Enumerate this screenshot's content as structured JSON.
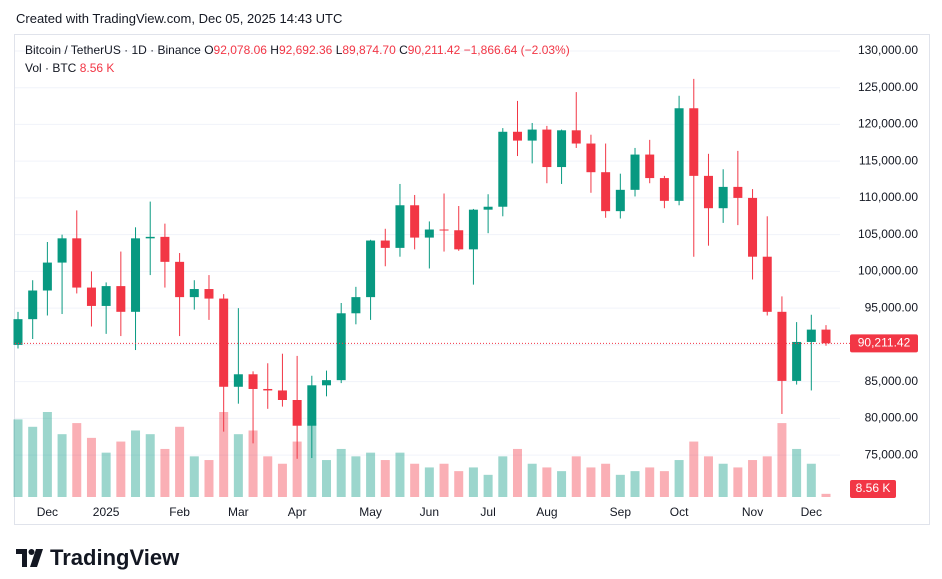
{
  "header": {
    "credit": "Created with TradingView.com, Dec 05, 2025 14:43 UTC"
  },
  "legend": {
    "symbol": "Bitcoin / TetherUS · 1D · Binance",
    "items": [
      {
        "key": "O",
        "value": "92,078.06"
      },
      {
        "key": "H",
        "value": "92,692.36"
      },
      {
        "key": "L",
        "value": "89,874.70"
      },
      {
        "key": "C",
        "value": "90,211.42"
      }
    ],
    "change": "−1,866.64 (−2.03%)",
    "volume_label": "Vol · BTC",
    "volume_value": "8.56 K"
  },
  "chart_data": {
    "type": "candlestick",
    "categories": [
      null,
      null,
      "Dec",
      null,
      null,
      null,
      "2025",
      null,
      null,
      null,
      null,
      "Feb",
      null,
      null,
      null,
      "Mar",
      null,
      null,
      null,
      "Apr",
      null,
      null,
      null,
      null,
      "May",
      null,
      null,
      null,
      "Jun",
      null,
      null,
      null,
      "Jul",
      null,
      null,
      null,
      "Aug",
      null,
      null,
      null,
      null,
      "Sep",
      null,
      null,
      null,
      "Oct",
      null,
      null,
      null,
      null,
      "Nov",
      null,
      null,
      null,
      "Dec",
      null
    ],
    "open": [
      90000,
      93500,
      97400,
      101200,
      104500,
      97800,
      95300,
      98000,
      94500,
      104500,
      104700,
      101300,
      96500,
      97600,
      96300,
      84300,
      86000,
      84000,
      83800,
      82500,
      79000,
      84500,
      85200,
      94300,
      96500,
      104200,
      103200,
      109000,
      104600,
      105700,
      105600,
      103000,
      108400,
      108800,
      119000,
      117800,
      119300,
      114200,
      119200,
      117400,
      113500,
      108200,
      111100,
      115900,
      112700,
      109600,
      122200,
      113000,
      108600,
      111500,
      110000,
      102000,
      94500,
      85100,
      90400,
      92078.06
    ],
    "high": [
      94500,
      98800,
      104000,
      105000,
      108300,
      100000,
      98500,
      102700,
      106000,
      109500,
      106500,
      102500,
      98800,
      99500,
      96900,
      95000,
      86400,
      87500,
      88800,
      88500,
      85800,
      86500,
      95700,
      97900,
      104300,
      105800,
      111900,
      110400,
      106800,
      110600,
      108900,
      108500,
      110500,
      119500,
      123200,
      120200,
      119800,
      119300,
      124400,
      118600,
      117400,
      113300,
      116800,
      117900,
      113000,
      123900,
      126200,
      116000,
      113900,
      116400,
      111200,
      107500,
      96600,
      93100,
      94100,
      92692.36
    ],
    "low": [
      89500,
      90800,
      94000,
      94200,
      97000,
      92500,
      91500,
      91200,
      89300,
      99500,
      97800,
      91200,
      94800,
      93400,
      78200,
      82000,
      76600,
      81300,
      81600,
      74500,
      74600,
      83000,
      84800,
      92800,
      93400,
      100700,
      102000,
      103000,
      100400,
      102700,
      102800,
      98200,
      105200,
      107500,
      115700,
      114700,
      112000,
      111900,
      116800,
      110700,
      107300,
      107200,
      110200,
      112000,
      108600,
      109000,
      102000,
      103500,
      106600,
      106300,
      98900,
      94000,
      80600,
      84600,
      83800,
      89874.7
    ],
    "close": [
      93500,
      97400,
      101200,
      104500,
      97800,
      95300,
      98000,
      94500,
      104500,
      104700,
      101300,
      96500,
      97600,
      96300,
      84300,
      86000,
      84000,
      83800,
      82500,
      79000,
      84500,
      85200,
      94300,
      96500,
      104200,
      103200,
      109000,
      104600,
      105700,
      105600,
      103000,
      108400,
      108800,
      119000,
      117800,
      119300,
      114200,
      119200,
      117400,
      113500,
      108200,
      111100,
      115900,
      112700,
      109600,
      122200,
      113000,
      108600,
      111500,
      110000,
      102000,
      94500,
      85100,
      90400,
      92078.06,
      90211.42
    ],
    "volume": [
      210000,
      190000,
      230000,
      170000,
      200000,
      160000,
      120000,
      150000,
      180000,
      170000,
      130000,
      190000,
      110000,
      100000,
      230000,
      170000,
      180000,
      110000,
      90000,
      150000,
      200000,
      100000,
      130000,
      110000,
      120000,
      100000,
      120000,
      90000,
      80000,
      90000,
      70000,
      80000,
      60000,
      110000,
      130000,
      90000,
      80000,
      70000,
      110000,
      80000,
      90000,
      60000,
      70000,
      80000,
      70000,
      100000,
      150000,
      110000,
      90000,
      80000,
      100000,
      110000,
      200000,
      130000,
      90000,
      8560
    ],
    "up_color": "#089981",
    "down_color": "#f23645",
    "last_price_label": "90,211.42",
    "last_volume_label": "8.56 K",
    "ylim": [
      69300,
      132170
    ],
    "yticks": [
      {
        "value": 75000,
        "label": "75,000.00"
      },
      {
        "value": 80000,
        "label": "80,000.00"
      },
      {
        "value": 85000,
        "label": "85,000.00"
      },
      {
        "value": 90000,
        "label": "90,000.00"
      },
      {
        "value": 95000,
        "label": "95,000.00"
      },
      {
        "value": 100000,
        "label": "100,000.00"
      },
      {
        "value": 105000,
        "label": "105,000.00"
      },
      {
        "value": 110000,
        "label": "110,000.00"
      },
      {
        "value": 115000,
        "label": "115,000.00"
      },
      {
        "value": 120000,
        "label": "120,000.00"
      },
      {
        "value": 125000,
        "label": "125,000.00"
      },
      {
        "value": 130000,
        "label": "130,000.00"
      }
    ],
    "grid": true
  },
  "footer": {
    "brand": "TradingView"
  }
}
